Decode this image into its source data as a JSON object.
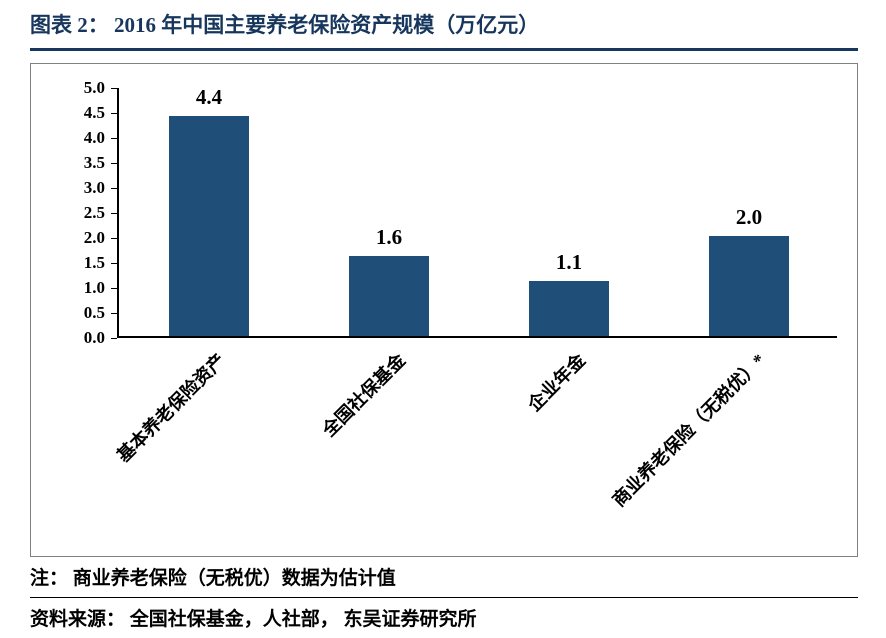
{
  "header": {
    "accent_color": "#17365D"
  },
  "chart_data": {
    "type": "bar",
    "title": "图表 2： 2016 年中国主要养老保险资产规模（万亿元）",
    "categories": [
      "基本养老保险资产",
      "全国社保基金",
      "企业年金",
      "商业养老保险（无税优）*"
    ],
    "values": [
      4.4,
      1.6,
      1.1,
      2.0
    ],
    "value_labels": [
      "4.4",
      "1.6",
      "1.1",
      "2.0"
    ],
    "xlabel": "",
    "ylabel": "",
    "ylim": [
      0,
      5
    ],
    "ytick_step": 0.5,
    "ytick_labels": [
      "0.0",
      "0.5",
      "1.0",
      "1.5",
      "2.0",
      "2.5",
      "3.0",
      "3.5",
      "4.0",
      "4.5",
      "5.0"
    ],
    "grid": false,
    "legend": false,
    "bar_color": "#1F4E79",
    "x_label_rotation_deg": 45
  },
  "footer": {
    "note": "注： 商业养老保险（无税优）数据为估计值",
    "source": "资料来源： 全国社保基金，人社部， 东吴证券研究所"
  }
}
